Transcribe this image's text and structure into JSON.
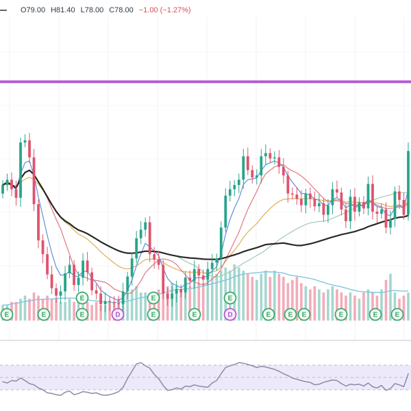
{
  "ohlc_legend": {
    "open_label": "O79.00",
    "high_label": "H81.40",
    "low_label": "L78.00",
    "close_label": "C78.00",
    "change_label": "−1.00 (−1.27%)"
  },
  "colors": {
    "up": "#27a48a",
    "down": "#e0526d",
    "purple": "#b35bd1",
    "black_ma": "#1e1e1e",
    "red_ma": "#e07983",
    "blue_ma": "#4c86d4",
    "orange_ma": "#e2b15f",
    "green_ma": "#9cc8a8",
    "rsi": "#8b8ba5",
    "rsi_band": "#ece8fb"
  },
  "events": [
    {
      "label": "E",
      "kind": "earnings"
    },
    {
      "label": "E",
      "kind": "earnings"
    },
    {
      "label": "E",
      "kind": "earnings"
    },
    {
      "label": "E",
      "kind": "earnings"
    },
    {
      "label": "D",
      "kind": "dividend"
    },
    {
      "label": "E",
      "kind": "earnings"
    },
    {
      "label": "E",
      "kind": "earnings"
    },
    {
      "label": "E",
      "kind": "earnings"
    },
    {
      "label": "D",
      "kind": "dividend"
    },
    {
      "label": "E",
      "kind": "earnings"
    },
    {
      "label": "E",
      "kind": "earnings"
    },
    {
      "label": "E",
      "kind": "earnings"
    },
    {
      "label": "E",
      "kind": "earnings"
    },
    {
      "label": "E",
      "kind": "earnings"
    },
    {
      "label": "E",
      "kind": "earnings"
    },
    {
      "label": "E",
      "kind": "earnings"
    }
  ],
  "chart_data": {
    "type": "candlestick",
    "ohlc": {
      "open": 79.0,
      "high": 81.4,
      "low": 78.0,
      "close": 78.0,
      "change": -1.0,
      "change_pct": -1.27
    },
    "bars": 92,
    "price_ylim": [
      60,
      90
    ],
    "horizontal_line": 84.5,
    "closes": [
      74.8,
      75.3,
      74.4,
      73.6,
      78.8,
      79.0,
      77.4,
      73.0,
      69.6,
      68.3,
      66.4,
      65.1,
      64.4,
      64.8,
      66.5,
      67.3,
      65.4,
      66.1,
      67.7,
      66.6,
      64.9,
      64.6,
      63.6,
      63.9,
      63.8,
      63.7,
      63.6,
      64.8,
      66.2,
      67.9,
      69.8,
      70.6,
      71.3,
      68.3,
      67.8,
      67.3,
      64.6,
      64.1,
      64.6,
      65.0,
      64.7,
      66.1,
      65.8,
      66.9,
      66.3,
      65.9,
      66.9,
      67.5,
      67.9,
      70.8,
      73.8,
      74.4,
      74.8,
      75.3,
      77.5,
      76.2,
      75.5,
      75.7,
      77.5,
      77.8,
      77.3,
      77.4,
      76.5,
      75.7,
      74.0,
      73.9,
      73.5,
      72.9,
      74.0,
      73.5,
      72.8,
      73.1,
      72.0,
      72.9,
      74.4,
      74.1,
      72.5,
      71.4,
      73.7,
      72.3,
      73.2,
      72.6,
      74.9,
      72.3,
      72.1,
      72.5,
      70.8,
      71.6,
      74.2,
      73.4,
      72.0,
      78.0
    ],
    "volume": [
      5,
      5,
      6,
      6,
      7,
      8,
      7,
      9,
      8,
      7,
      8,
      7,
      7,
      6,
      6,
      7,
      6,
      6,
      6,
      6,
      5,
      6,
      5,
      5,
      6,
      6,
      7,
      8,
      9,
      10,
      11,
      9,
      9,
      8,
      9,
      10,
      10,
      11,
      12,
      11,
      10,
      12,
      11,
      13,
      12,
      12,
      13,
      14,
      15,
      16,
      17,
      16,
      18,
      17,
      16,
      15,
      14,
      13,
      15,
      16,
      14,
      16,
      15,
      14,
      12,
      13,
      14,
      12,
      11,
      10,
      11,
      10,
      9,
      10,
      11,
      10,
      9,
      8,
      9,
      8,
      7,
      9,
      10,
      9,
      8,
      10,
      13,
      15,
      9,
      7,
      8,
      9
    ],
    "rsi": [
      43,
      41,
      45,
      44,
      49,
      45,
      40,
      38,
      33,
      30,
      25,
      24,
      22,
      21,
      26,
      28,
      22,
      24,
      27,
      26,
      24,
      25,
      22,
      21,
      22,
      24,
      27,
      34,
      48,
      60,
      72,
      74,
      69,
      65,
      55,
      48,
      37,
      29,
      30,
      33,
      31,
      36,
      35,
      38,
      36,
      35,
      34,
      41,
      45,
      56,
      66,
      69,
      71,
      74,
      73,
      71,
      69,
      66,
      68,
      67,
      65,
      63,
      60,
      56,
      53,
      49,
      47,
      45,
      43,
      42,
      38,
      39,
      42,
      44,
      46,
      45,
      40,
      36,
      39,
      38,
      39,
      36,
      41,
      35,
      33,
      37,
      29,
      32,
      40,
      38,
      35,
      56
    ],
    "rsi_ylim": [
      0,
      100
    ],
    "rsi_band": [
      30,
      70
    ]
  }
}
